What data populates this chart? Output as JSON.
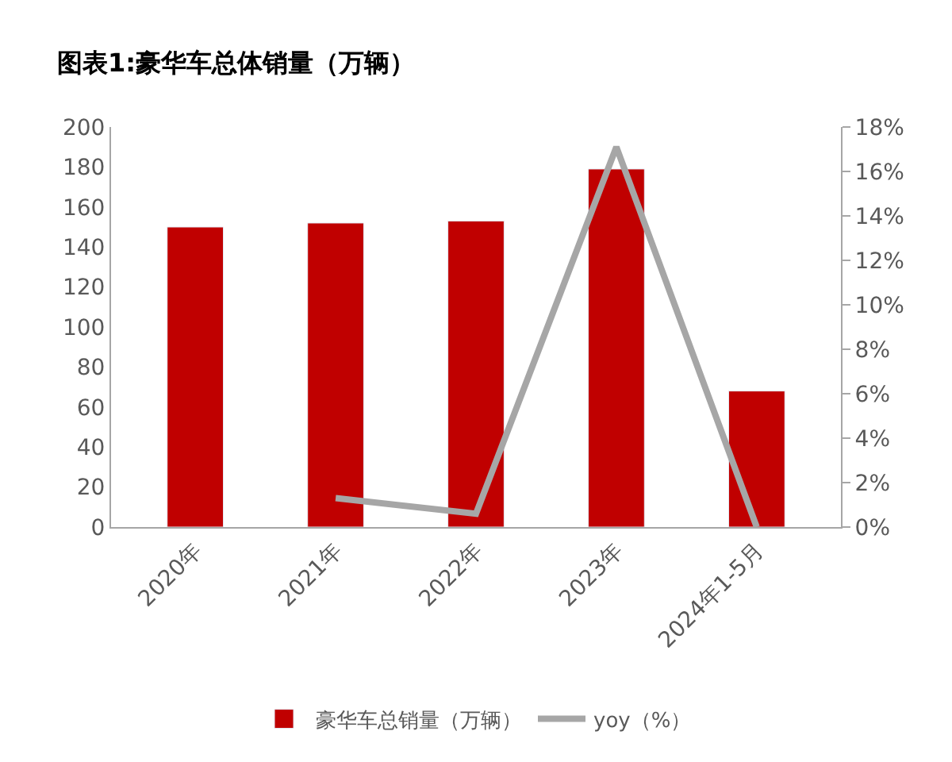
{
  "chart_data": {
    "type": "bar",
    "title": "图表1:豪华车总体销量（万辆）",
    "categories": [
      "2020年",
      "2021年",
      "2022年",
      "2023年",
      "2024年1-5月"
    ],
    "series": [
      {
        "name": "豪华车总销量（万辆）",
        "color": "#c00000",
        "values": [
          150,
          152,
          153,
          179,
          68
        ]
      },
      {
        "name": "yoy（%）",
        "color": "#a6a6a6",
        "type": "line",
        "axis": "y2",
        "values": [
          null,
          1.3,
          0.6,
          17.1,
          0
        ]
      }
    ],
    "ylim": [
      0,
      200
    ],
    "yticks": [
      0,
      20,
      40,
      60,
      80,
      100,
      120,
      140,
      160,
      180,
      200
    ],
    "y2lim": [
      0,
      18
    ],
    "y2ticks": [
      {
        "value": 0,
        "label": "0%"
      },
      {
        "value": 2,
        "label": "2%"
      },
      {
        "value": 4,
        "label": "4%"
      },
      {
        "value": 6,
        "label": "6%"
      },
      {
        "value": 8,
        "label": "8%"
      },
      {
        "value": 10,
        "label": "10%"
      },
      {
        "value": 12,
        "label": "12%"
      },
      {
        "value": 14,
        "label": "14%"
      },
      {
        "value": 16,
        "label": "16%"
      },
      {
        "value": 18,
        "label": "18%"
      }
    ],
    "legend": "bottom",
    "marker": "none",
    "line_style": "solid"
  }
}
